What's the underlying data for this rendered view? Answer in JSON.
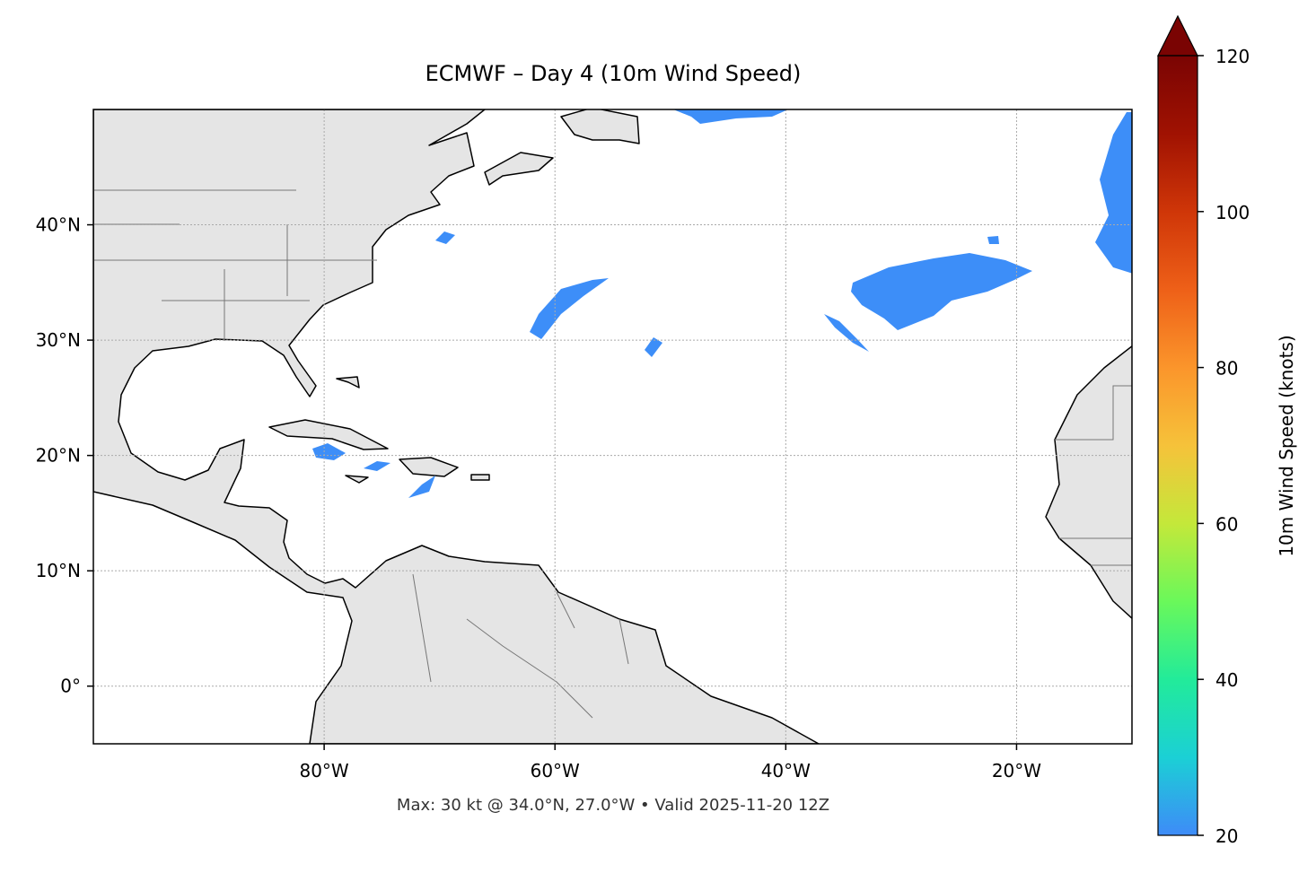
{
  "title": "ECMWF – Day 4 (10m Wind Speed)",
  "footer": "Max: 30 kt @ 34.0°N, 27.0°W • Valid 2025-11-20 12Z",
  "map": {
    "xlim": [
      -100,
      -10
    ],
    "ylim": [
      -5,
      50
    ],
    "grid": true,
    "xticks": [
      {
        "value": -80,
        "label": "80°W"
      },
      {
        "value": -60,
        "label": "60°W"
      },
      {
        "value": -40,
        "label": "40°W"
      },
      {
        "value": -20,
        "label": "20°W"
      }
    ],
    "yticks": [
      {
        "value": 0,
        "label": "0°"
      },
      {
        "value": 10,
        "label": "10°N"
      },
      {
        "value": 20,
        "label": "20°N"
      },
      {
        "value": 30,
        "label": "30°N"
      },
      {
        "value": 40,
        "label": "40°N"
      }
    ]
  },
  "colorbar": {
    "label": "10m Wind Speed (knots)",
    "lim": [
      20,
      120
    ],
    "ticks": [
      20,
      40,
      60,
      80,
      100,
      120
    ],
    "extend": "max",
    "colors": [
      "#3e8bf8",
      "#1bd0d5",
      "#22eb9a",
      "#6af85a",
      "#c4e83a",
      "#f6c23a",
      "#fb952b",
      "#ee6018",
      "#cf3608",
      "#a01202",
      "#7a0403"
    ]
  }
}
